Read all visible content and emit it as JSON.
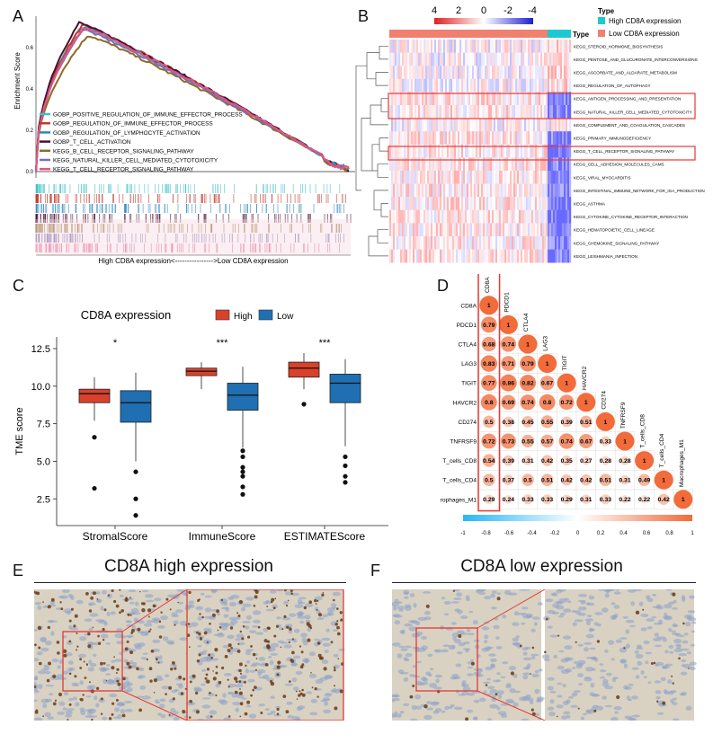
{
  "panels": {
    "a": "A",
    "b": "B",
    "c": "C",
    "d": "D",
    "e": "E",
    "f": "F"
  },
  "gsea": {
    "ylabel": "Enrichment Score",
    "yticks": [
      "0.6",
      "0.4",
      "0.2",
      "0.0"
    ],
    "xlabel": "High CD8A expression<---------------->Low CD8A expression",
    "legend": [
      {
        "label": "GOBP_POSITIVE_REGULATION_OF_IMMUNE_EFFECTOR_PROCESS",
        "color": "#3fc1c9"
      },
      {
        "label": "GOBP_REGULATION_OF_IMMUNE_EFFECTOR_PROCESS",
        "color": "#c0392b"
      },
      {
        "label": "GOBP_REGULATION_OF_LYMPHOCYTE_ACTIVATION",
        "color": "#2e86c1"
      },
      {
        "label": "GOBP_T_CELL_ACTIVATION",
        "color": "#4a1030"
      },
      {
        "label": "KEGG_B_CELL_RECEPTOR_SIGNALING_PATHWAY",
        "color": "#8e6b2a"
      },
      {
        "label": "KEGG_NATURAL_KILLER_CELL_MEDIATED_CYTOTOXICITY",
        "color": "#7d6fb0"
      },
      {
        "label": "KEGG_T_CELL_RECEPTOR_SIGNALING_PATHWAY",
        "color": "#e75480"
      }
    ]
  },
  "heatmap": {
    "scale_ticks": [
      "4",
      "2",
      "0",
      "-2",
      "-4"
    ],
    "type_label": "Type",
    "legend_title": "Type",
    "legend": [
      {
        "label": "High CD8A expression",
        "color": "#1ec8d0"
      },
      {
        "label": "Low CD8A expression",
        "color": "#f08070"
      }
    ],
    "rows": [
      "KEGG_STEROID_HORMONE_BIOSYNTHESIS",
      "KEGG_PENTOSE_AND_GLUCURONATE_INTERCONVERSIONS",
      "KEGG_ASCORBATE_AND_ALDARATE_METABOLISM",
      "KEGG_REGULATION_OF_AUTOPHAGY",
      "KEGG_ANTIGEN_PROCESSING_AND_PRESENTATION",
      "KEGG_NATURAL_KILLER_CELL_MEDIATED_CYTOTOXICITY",
      "KEGG_COMPLEMENT_AND_COAGULATION_CASCADES",
      "KEGG_PRIMARY_IMMUNODEFICIENCY",
      "KEGG_T_CELL_RECEPTOR_SIGNALING_PATHWAY",
      "KEGG_CELL_ADHESION_MOLECULES_CAMS",
      "KEGG_VIRAL_MYOCARDITIS",
      "KEGG_INTESTINAL_IMMUNE_NETWORK_FOR_IGA_PRODUCTION",
      "KEGG_ASTHMA",
      "KEGG_CYTOKINE_CYTOKINE_RECEPTOR_INTERACTION",
      "KEGG_HEMATOPOIETIC_CELL_LINEAGE",
      "KEGG_CHEMOKINE_SIGNALING_PATHWAY",
      "KEGG_LEISHMANIA_INFECTION"
    ]
  },
  "chart_data": [
    {
      "type": "box",
      "title": "CD8A expression",
      "legend": [
        {
          "name": "High",
          "color": "#d9412b"
        },
        {
          "name": "Low",
          "color": "#1f6fb2"
        }
      ],
      "ylabel": "TME score",
      "yticks": [
        "12.5",
        "10.0",
        "7.5",
        "5.0",
        "2.5"
      ],
      "ylim": [
        1.2,
        12.8
      ],
      "categories": [
        "StromalScore",
        "ImmuneScore",
        "ESTIMATEScore"
      ],
      "significance": [
        "*",
        "***",
        "***"
      ],
      "series": [
        {
          "name": "High",
          "boxes": [
            {
              "min": 7.7,
              "q1": 8.9,
              "median": 9.5,
              "q3": 9.8,
              "max": 10.6,
              "outliers": [
                6.6,
                3.2
              ]
            },
            {
              "min": 9.8,
              "q1": 10.7,
              "median": 11.0,
              "q3": 11.2,
              "max": 11.6,
              "outliers": []
            },
            {
              "min": 9.8,
              "q1": 10.6,
              "median": 11.2,
              "q3": 11.6,
              "max": 12.2,
              "outliers": [
                8.8
              ]
            }
          ]
        },
        {
          "name": "Low",
          "boxes": [
            {
              "min": 5.0,
              "q1": 7.6,
              "median": 8.9,
              "q3": 9.7,
              "max": 10.9,
              "outliers": [
                4.3,
                2.5,
                1.4
              ]
            },
            {
              "min": 5.9,
              "q1": 8.4,
              "median": 9.4,
              "q3": 10.2,
              "max": 11.3,
              "outliers": [
                5.7,
                5.3,
                4.6,
                4.3,
                4.0,
                3.3,
                2.8
              ]
            },
            {
              "min": 6.0,
              "q1": 8.9,
              "median": 10.2,
              "q3": 10.8,
              "max": 11.8,
              "outliers": [
                5.3,
                4.7,
                4.0,
                3.6
              ]
            }
          ]
        }
      ]
    },
    {
      "type": "heatmap",
      "title": "Correlation matrix",
      "labels": [
        "CD8A",
        "PDCD1",
        "CTLA4",
        "LAG3",
        "TIGIT",
        "HAVCR2",
        "CD274",
        "TNFRSF9",
        "T_cells_CD8",
        "T_cells_CD4",
        "Macrophages_M1"
      ],
      "matrix": [
        [
          1
        ],
        [
          0.79,
          1
        ],
        [
          0.68,
          0.74,
          1
        ],
        [
          0.83,
          0.71,
          0.79,
          1
        ],
        [
          0.77,
          0.86,
          0.82,
          0.67,
          1
        ],
        [
          0.8,
          0.69,
          0.74,
          0.8,
          0.72,
          1
        ],
        [
          0.5,
          0.38,
          0.45,
          0.55,
          0.39,
          0.51,
          1
        ],
        [
          0.72,
          0.73,
          0.55,
          0.57,
          0.74,
          0.67,
          0.33,
          1
        ],
        [
          0.54,
          0.39,
          0.31,
          0.42,
          0.35,
          0.27,
          0.28,
          0.28,
          1
        ],
        [
          0.5,
          0.37,
          0.5,
          0.51,
          0.42,
          0.42,
          0.51,
          0.31,
          0.49,
          1
        ],
        [
          0.29,
          0.24,
          0.33,
          0.33,
          0.29,
          0.31,
          0.33,
          0.22,
          0.22,
          0.42,
          1
        ]
      ],
      "colorbar_ticks": [
        "-1",
        "-0.8",
        "-0.6",
        "-0.4",
        "-0.2",
        "0",
        "0.2",
        "0.4",
        "0.6",
        "0.8",
        "1"
      ]
    }
  ],
  "histology": {
    "e_title": "CD8A high expression",
    "f_title": "CD8A low expression"
  },
  "colors": {
    "high": "#d9412b",
    "low": "#1f6fb2",
    "highlight": "#e53935",
    "corr_high": "#f26b3a",
    "corr_low": "#29b6f6"
  }
}
